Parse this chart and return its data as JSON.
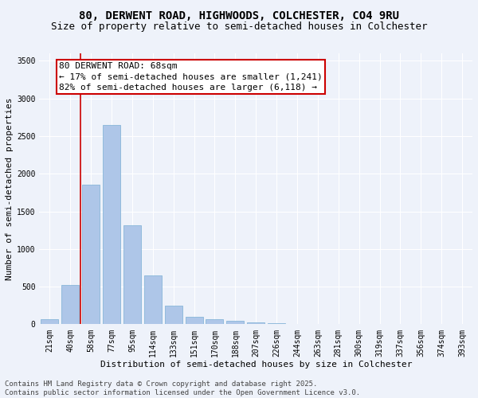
{
  "title_line1": "80, DERWENT ROAD, HIGHWOODS, COLCHESTER, CO4 9RU",
  "title_line2": "Size of property relative to semi-detached houses in Colchester",
  "xlabel": "Distribution of semi-detached houses by size in Colchester",
  "ylabel": "Number of semi-detached properties",
  "categories": [
    "21sqm",
    "40sqm",
    "58sqm",
    "77sqm",
    "95sqm",
    "114sqm",
    "133sqm",
    "151sqm",
    "170sqm",
    "188sqm",
    "207sqm",
    "226sqm",
    "244sqm",
    "263sqm",
    "281sqm",
    "300sqm",
    "319sqm",
    "337sqm",
    "356sqm",
    "374sqm",
    "393sqm"
  ],
  "values": [
    65,
    525,
    1850,
    2650,
    1320,
    645,
    250,
    100,
    65,
    45,
    30,
    15,
    8,
    3,
    2,
    1,
    1,
    0,
    0,
    0,
    0
  ],
  "bar_color": "#aec6e8",
  "bar_edgecolor": "#7aafd4",
  "vline_color": "#cc0000",
  "vline_x_index": 2,
  "annotation_box_text": "80 DERWENT ROAD: 68sqm\n← 17% of semi-detached houses are smaller (1,241)\n82% of semi-detached houses are larger (6,118) →",
  "ylim": [
    0,
    3600
  ],
  "yticks": [
    0,
    500,
    1000,
    1500,
    2000,
    2500,
    3000,
    3500
  ],
  "background_color": "#eef2fa",
  "grid_color": "#ffffff",
  "footer_text": "Contains HM Land Registry data © Crown copyright and database right 2025.\nContains public sector information licensed under the Open Government Licence v3.0.",
  "title_fontsize": 10,
  "subtitle_fontsize": 9,
  "axis_label_fontsize": 8,
  "tick_fontsize": 7,
  "annotation_fontsize": 8,
  "footer_fontsize": 6.5,
  "ylabel_fontsize": 8
}
